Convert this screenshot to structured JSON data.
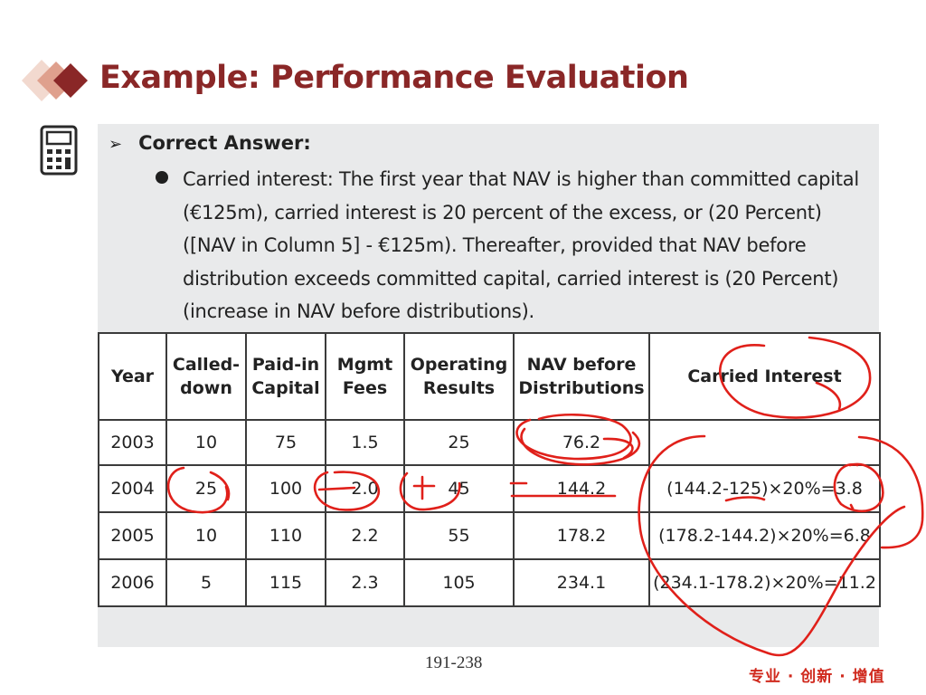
{
  "slide": {
    "title": "Example: Performance Evaluation",
    "answer_heading": "Correct Answer:",
    "bullet_text": "Carried interest: The first year that NAV is higher than committed capital (€125m), carried interest is 20 percent of the excess, or (20 Percent) ([NAV in Column 5] - €125m). Thereafter, provided that NAV before distribution exceeds committed capital, carried interest is (20 Percent) (increase in NAV before distributions).",
    "page_number": "191-238",
    "slogan": "专业 · 创新 · 增值"
  },
  "table": {
    "headers": [
      "Year",
      "Called-down",
      "Paid-in Capital",
      "Mgmt Fees",
      "Operating Results",
      "NAV before Distributions",
      "Carried Interest"
    ],
    "rows": [
      [
        "2003",
        "10",
        "75",
        "1.5",
        "25",
        "76.2",
        ""
      ],
      [
        "2004",
        "25",
        "100",
        "2.0",
        "45",
        "144.2",
        "(144.2-125)×20%=3.8"
      ],
      [
        "2005",
        "10",
        "110",
        "2.2",
        "55",
        "178.2",
        "(178.2-144.2)×20%=6.8"
      ],
      [
        "2006",
        "5",
        "115",
        "2.3",
        "105",
        "234.1",
        "(234.1-178.2)×20%=11.2"
      ]
    ]
  },
  "colors": {
    "title": "#8a2727",
    "panel_background": "#e9eaeb",
    "annotation_ink": "#e0201a",
    "slogan": "#d02a1e"
  },
  "icons": {
    "logo": "diamond-logo-icon",
    "side": "calculator-icon"
  }
}
